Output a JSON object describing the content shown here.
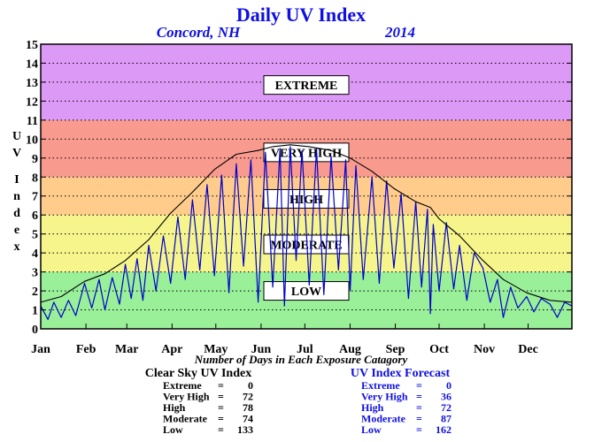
{
  "chart_data": {
    "type": "line",
    "title": "Daily UV Index",
    "location": "Concord, NH",
    "year": "2014",
    "ylabel": "UV Index",
    "ylim": [
      0,
      15
    ],
    "yticks": [
      "0",
      "1",
      "2",
      "3",
      "4",
      "5",
      "6",
      "7",
      "8",
      "9",
      "10",
      "11",
      "12",
      "13",
      "14",
      "15"
    ],
    "xlabels": [
      "Jan",
      "Feb",
      "Mar",
      "Apr",
      "May",
      "Jun",
      "Jul",
      "Aug",
      "Sep",
      "Oct",
      "Nov",
      "Dec"
    ],
    "xlim": [
      1,
      365
    ],
    "x_caption": "Number of Days in Each Exposure Catagory",
    "grid": "dotted horizontal",
    "bands": [
      {
        "label": "LOW",
        "from": 0,
        "to": 3,
        "color": "#99f099"
      },
      {
        "label": "MODERATE",
        "from": 3,
        "to": 6,
        "color": "#f5f58c"
      },
      {
        "label": "HIGH",
        "from": 6,
        "to": 8,
        "color": "#ffcc8c"
      },
      {
        "label": "VERY HIGH",
        "from": 8,
        "to": 11,
        "color": "#f99a8e"
      },
      {
        "label": "EXTREME",
        "from": 11,
        "to": 15,
        "color": "#dd99f6"
      }
    ],
    "series": [
      {
        "name": "Clear Sky UV Index",
        "color": "#000000",
        "x": [
          1,
          15,
          31,
          45,
          59,
          75,
          90,
          105,
          120,
          135,
          150,
          160,
          172,
          185,
          200,
          213,
          228,
          243,
          258,
          268,
          274,
          288,
          304,
          318,
          334,
          350,
          365
        ],
        "y": [
          1.4,
          1.7,
          2.5,
          2.9,
          3.6,
          4.7,
          6.1,
          7.2,
          8.4,
          9.2,
          9.4,
          9.6,
          9.7,
          9.6,
          9.4,
          9.0,
          8.3,
          7.4,
          6.7,
          6.4,
          5.8,
          4.9,
          3.6,
          2.6,
          1.9,
          1.5,
          1.4
        ]
      },
      {
        "name": "UV Index Forecast",
        "color": "#0000cc",
        "x": [
          1,
          6,
          10,
          15,
          20,
          25,
          31,
          36,
          41,
          45,
          50,
          55,
          59,
          63,
          67,
          71,
          75,
          80,
          85,
          90,
          95,
          100,
          105,
          110,
          115,
          120,
          125,
          130,
          135,
          140,
          145,
          150,
          155,
          160,
          165,
          168,
          172,
          176,
          180,
          185,
          190,
          195,
          200,
          205,
          210,
          213,
          217,
          222,
          228,
          233,
          238,
          243,
          248,
          253,
          258,
          262,
          266,
          268,
          270,
          274,
          279,
          284,
          288,
          293,
          298,
          304,
          309,
          314,
          318,
          323,
          328,
          334,
          339,
          344,
          350,
          355,
          360,
          365
        ],
        "y": [
          1.2,
          0.5,
          1.4,
          0.6,
          1.5,
          0.7,
          2.4,
          1.1,
          2.6,
          1.0,
          2.7,
          1.3,
          3.4,
          1.6,
          3.7,
          1.5,
          4.4,
          2.0,
          4.9,
          2.4,
          5.9,
          2.6,
          6.8,
          3.1,
          7.6,
          2.8,
          8.1,
          1.9,
          8.7,
          3.3,
          8.9,
          1.4,
          9.3,
          2.2,
          9.5,
          1.2,
          9.6,
          3.6,
          9.4,
          2.3,
          9.5,
          1.8,
          9.1,
          3.1,
          8.9,
          2.0,
          8.6,
          2.6,
          8.0,
          2.4,
          7.8,
          3.2,
          7.1,
          1.6,
          6.7,
          2.2,
          6.3,
          0.8,
          5.5,
          2.0,
          5.6,
          2.1,
          4.4,
          1.5,
          4.0,
          3.2,
          1.4,
          2.6,
          0.6,
          2.2,
          1.1,
          1.7,
          0.9,
          1.6,
          1.3,
          0.6,
          1.4,
          1.2
        ]
      }
    ],
    "band_labels": {
      "low": "LOW",
      "moderate": "MODERATE",
      "high": "HIGH",
      "very_high": "VERY HIGH",
      "extreme": "EXTREME"
    }
  },
  "stats": {
    "clear_sky": {
      "title": "Clear Sky UV Index",
      "rows": [
        {
          "label": "Extreme",
          "sep": "=",
          "value": "0"
        },
        {
          "label": "Very High",
          "sep": "=",
          "value": "72"
        },
        {
          "label": "High",
          "sep": "=",
          "value": "78"
        },
        {
          "label": "Moderate",
          "sep": "=",
          "value": "74"
        },
        {
          "label": "Low",
          "sep": "=",
          "value": "133"
        }
      ]
    },
    "forecast": {
      "title": "UV Index Forecast",
      "rows": [
        {
          "label": "Extreme",
          "sep": "=",
          "value": "0"
        },
        {
          "label": "Very High",
          "sep": "=",
          "value": "36"
        },
        {
          "label": "High",
          "sep": "=",
          "value": "72"
        },
        {
          "label": "Moderate",
          "sep": "=",
          "value": "87"
        },
        {
          "label": "Low",
          "sep": "=",
          "value": "162"
        }
      ]
    }
  }
}
